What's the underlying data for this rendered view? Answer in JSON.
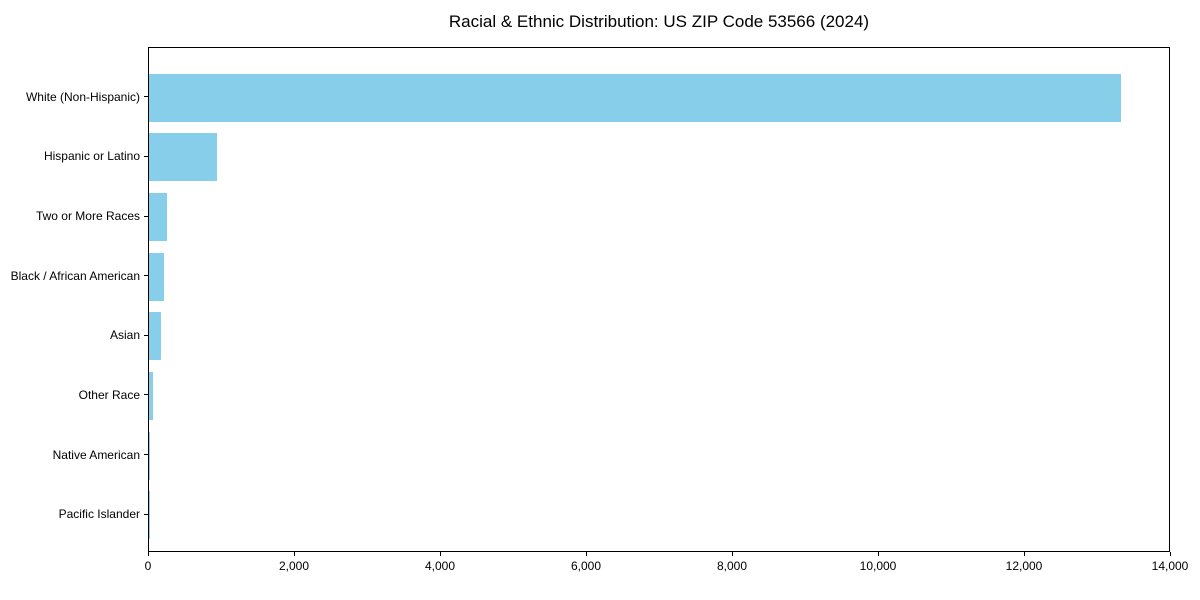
{
  "figure": {
    "title": "Racial & Ethnic Distribution: US ZIP Code 53566 (2024)"
  },
  "chart_data": {
    "type": "bar",
    "orientation": "horizontal",
    "title": "Racial & Ethnic Distribution: US ZIP Code 53566 (2024)",
    "categories": [
      "White (Non-Hispanic)",
      "Hispanic or Latino",
      "Two or More Races",
      "Black / African American",
      "Asian",
      "Other Race",
      "Native American",
      "Pacific Islander"
    ],
    "values": [
      13340,
      940,
      250,
      200,
      160,
      55,
      10,
      2
    ],
    "xlabel": "",
    "ylabel": "",
    "xlim": [
      0,
      14000
    ],
    "xticks": [
      0,
      2000,
      4000,
      6000,
      8000,
      10000,
      12000,
      14000
    ],
    "xtick_labels": [
      "0",
      "2,000",
      "4,000",
      "6,000",
      "8,000",
      "10,000",
      "12,000",
      "14,000"
    ],
    "bar_color": "#87CEEB",
    "text_color": "#000000",
    "spine_color": "#000000",
    "background_color": "#FFFFFF",
    "grid": false,
    "legend_position": "none"
  }
}
